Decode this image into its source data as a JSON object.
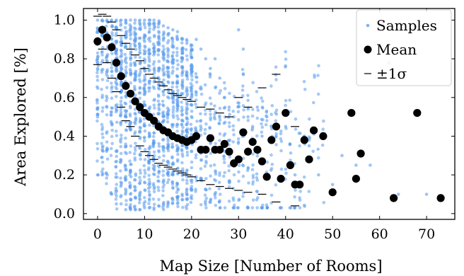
{
  "chart_data": {
    "type": "scatter",
    "xlabel": "Map Size [Number of Rooms]",
    "ylabel": "Area Explored [%]",
    "xlim": [
      -3,
      76
    ],
    "ylim": [
      -0.03,
      1.06
    ],
    "xticks": [
      0,
      10,
      20,
      30,
      40,
      50,
      60,
      70
    ],
    "yticks": [
      0.0,
      0.2,
      0.4,
      0.6,
      0.8,
      1.0
    ],
    "xtick_labels": [
      "0",
      "10",
      "20",
      "30",
      "40",
      "50",
      "60",
      "70"
    ],
    "ytick_labels": [
      "0.0",
      "0.2",
      "0.4",
      "0.6",
      "0.8",
      "1.0"
    ],
    "legend": {
      "placement": "top-right",
      "entries": [
        {
          "label": "Samples",
          "marker": "small-dot"
        },
        {
          "label": "Mean",
          "marker": "large-dot"
        },
        {
          "label": "±1σ",
          "marker": "dash"
        }
      ]
    },
    "colors": {
      "samples": "#5b9ded",
      "mean": "#000000",
      "sigma": "#000000"
    },
    "series": [
      {
        "name": "Samples",
        "style": "dense point cloud",
        "x": [
          0,
          0,
          0,
          0,
          0,
          1,
          1,
          1,
          2,
          2,
          3,
          3,
          4,
          4,
          5,
          5,
          6,
          6,
          7,
          7,
          8,
          8,
          9,
          9,
          10,
          10,
          11,
          11,
          12,
          12,
          13,
          13,
          14,
          14,
          15,
          15,
          16,
          16,
          17,
          17,
          18,
          18,
          19,
          19,
          20,
          20,
          21,
          22,
          23,
          24,
          25,
          26,
          27,
          28,
          29,
          30,
          31,
          32,
          33,
          34,
          35,
          36,
          37,
          38,
          40,
          42,
          44,
          45,
          47,
          50,
          52,
          55,
          58,
          62,
          64,
          70
        ],
        "y": [
          1.0,
          0.9,
          0.8,
          0.5,
          0.2,
          1.0,
          0.6,
          0.2,
          1.0,
          0.55,
          1.0,
          0.1,
          1.0,
          0.05,
          1.0,
          0.05,
          1.0,
          0.02,
          1.0,
          0.02,
          1.0,
          0.02,
          1.0,
          0.02,
          1.0,
          0.03,
          1.0,
          0.03,
          1.0,
          0.03,
          0.98,
          0.04,
          0.97,
          0.05,
          0.96,
          0.06,
          0.95,
          0.07,
          0.94,
          0.08,
          0.9,
          0.1,
          0.88,
          0.1,
          0.85,
          0.12,
          0.9,
          0.85,
          0.8,
          0.75,
          0.8,
          0.7,
          0.6,
          0.55,
          0.5,
          0.95,
          0.85,
          0.5,
          0.45,
          0.55,
          0.4,
          0.5,
          0.45,
          0.4,
          0.45,
          0.2,
          0.4,
          0.35,
          0.2,
          0.15,
          0.3,
          0.25,
          0.25,
          0.78,
          0.1,
          0.1
        ]
      },
      {
        "name": "Mean",
        "x": [
          0,
          1,
          2,
          3,
          4,
          5,
          6,
          7,
          8,
          9,
          10,
          11,
          12,
          13,
          14,
          15,
          16,
          17,
          18,
          19,
          20,
          21,
          22,
          23,
          24,
          25,
          26,
          27,
          28,
          29,
          30,
          31,
          32,
          33,
          34,
          35,
          36,
          37,
          38,
          39,
          40,
          41,
          42,
          43,
          44,
          45,
          46,
          48,
          50,
          54,
          55,
          56,
          63,
          68,
          73
        ],
        "y": [
          0.89,
          0.95,
          0.91,
          0.86,
          0.78,
          0.71,
          0.66,
          0.62,
          0.58,
          0.55,
          0.52,
          0.5,
          0.48,
          0.45,
          0.43,
          0.42,
          0.4,
          0.39,
          0.38,
          0.37,
          0.38,
          0.4,
          0.33,
          0.33,
          0.39,
          0.33,
          0.33,
          0.36,
          0.32,
          0.26,
          0.28,
          0.42,
          0.32,
          0.37,
          0.33,
          0.27,
          0.19,
          0.38,
          0.45,
          0.18,
          0.52,
          0.25,
          0.15,
          0.15,
          0.38,
          0.28,
          0.43,
          0.4,
          0.11,
          0.52,
          0.18,
          0.31,
          0.08,
          0.52,
          0.08
        ]
      },
      {
        "name": "±1σ",
        "x": [
          0,
          0,
          1,
          1,
          2,
          2,
          3,
          3,
          4,
          4,
          5,
          5,
          6,
          6,
          7,
          7,
          8,
          8,
          9,
          9,
          10,
          10,
          11,
          11,
          12,
          12,
          13,
          13,
          14,
          14,
          15,
          15,
          16,
          16,
          17,
          17,
          18,
          18,
          19,
          19,
          20,
          20,
          22,
          22,
          24,
          24,
          26,
          26,
          28,
          28,
          30,
          30,
          32,
          32,
          35,
          35,
          38,
          38,
          42,
          42
        ],
        "y": [
          1.02,
          0.77,
          1.03,
          0.85,
          1.02,
          0.78,
          0.99,
          0.7,
          0.95,
          0.63,
          0.92,
          0.55,
          0.88,
          0.48,
          0.85,
          0.45,
          0.82,
          0.4,
          0.79,
          0.35,
          0.75,
          0.32,
          0.72,
          0.3,
          0.7,
          0.28,
          0.68,
          0.26,
          0.66,
          0.25,
          0.64,
          0.24,
          0.62,
          0.23,
          0.61,
          0.22,
          0.6,
          0.21,
          0.59,
          0.2,
          0.58,
          0.19,
          0.55,
          0.17,
          0.54,
          0.15,
          0.52,
          0.14,
          0.5,
          0.13,
          0.6,
          0.12,
          0.55,
          0.11,
          0.65,
          0.1,
          0.72,
          0.06,
          0.45,
          0.04
        ]
      }
    ]
  }
}
